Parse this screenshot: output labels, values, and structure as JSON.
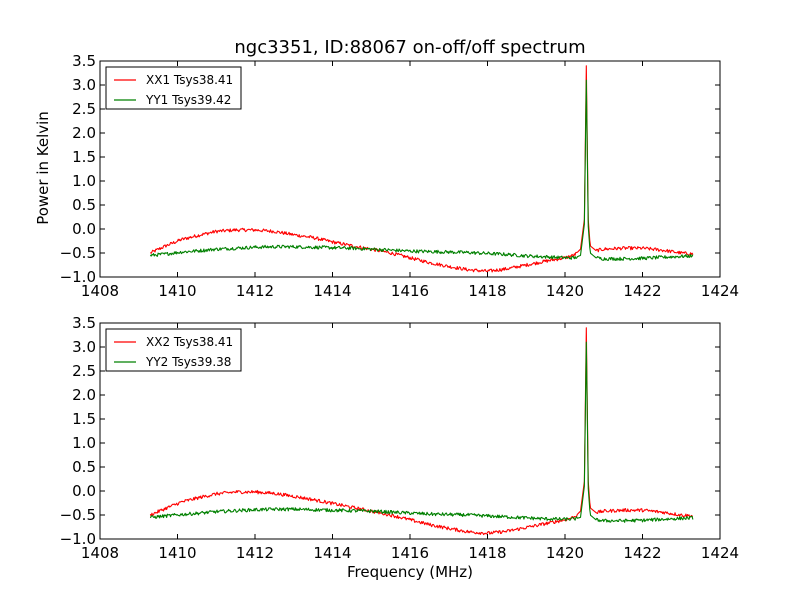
{
  "chart_data": [
    {
      "type": "line",
      "title": "ngc3351, ID:88067 on-off/off spectrum",
      "xlabel": "",
      "ylabel": "Power in Kelvin",
      "xlim": [
        1408,
        1424
      ],
      "ylim": [
        -1.0,
        3.5
      ],
      "xticks": [
        1408,
        1410,
        1412,
        1414,
        1416,
        1418,
        1420,
        1422,
        1424
      ],
      "yticks": [
        -1.0,
        -0.5,
        0.0,
        0.5,
        1.0,
        1.5,
        2.0,
        2.5,
        3.0,
        3.5
      ],
      "xtick_labels": [
        "1408",
        "1410",
        "1412",
        "1414",
        "1416",
        "1418",
        "1420",
        "1422",
        "1424"
      ],
      "ytick_labels": [
        "−1.0",
        "−0.5",
        "0.0",
        "0.5",
        "1.0",
        "1.5",
        "2.0",
        "2.5",
        "3.0",
        "3.5"
      ],
      "grid": false,
      "legend_position": "top-left",
      "series": [
        {
          "name": "XX1 Tsys38.41",
          "color": "#ff0000",
          "x": [
            1409.3,
            1409.7,
            1410.1,
            1410.6,
            1411.0,
            1411.5,
            1412.0,
            1412.5,
            1413.0,
            1413.5,
            1414.0,
            1414.5,
            1415.0,
            1415.5,
            1416.0,
            1416.5,
            1417.0,
            1417.5,
            1418.0,
            1418.5,
            1419.0,
            1419.5,
            1420.0,
            1420.25,
            1420.4,
            1420.5,
            1420.55,
            1420.6,
            1420.65,
            1420.8,
            1421.0,
            1421.5,
            1422.0,
            1422.5,
            1423.0,
            1423.3
          ],
          "y": [
            -0.5,
            -0.35,
            -0.22,
            -0.12,
            -0.05,
            -0.02,
            -0.02,
            -0.05,
            -0.12,
            -0.18,
            -0.27,
            -0.35,
            -0.42,
            -0.5,
            -0.6,
            -0.7,
            -0.78,
            -0.85,
            -0.88,
            -0.83,
            -0.75,
            -0.67,
            -0.6,
            -0.54,
            -0.42,
            0.2,
            3.4,
            0.2,
            -0.35,
            -0.45,
            -0.42,
            -0.4,
            -0.4,
            -0.44,
            -0.5,
            -0.52
          ]
        },
        {
          "name": "YY1 Tsys39.42",
          "color": "#008000",
          "x": [
            1409.3,
            1409.7,
            1410.1,
            1410.6,
            1411.0,
            1411.5,
            1412.0,
            1412.5,
            1413.0,
            1413.5,
            1414.0,
            1414.5,
            1415.0,
            1415.5,
            1416.0,
            1416.5,
            1417.0,
            1417.5,
            1418.0,
            1418.5,
            1419.0,
            1419.5,
            1420.0,
            1420.25,
            1420.4,
            1420.5,
            1420.55,
            1420.6,
            1420.65,
            1420.8,
            1421.0,
            1421.5,
            1422.0,
            1422.5,
            1423.0,
            1423.3
          ],
          "y": [
            -0.55,
            -0.52,
            -0.48,
            -0.45,
            -0.42,
            -0.4,
            -0.38,
            -0.37,
            -0.37,
            -0.38,
            -0.39,
            -0.4,
            -0.42,
            -0.44,
            -0.46,
            -0.47,
            -0.48,
            -0.49,
            -0.51,
            -0.53,
            -0.56,
            -0.58,
            -0.6,
            -0.6,
            -0.55,
            0.1,
            3.1,
            0.05,
            -0.5,
            -0.6,
            -0.62,
            -0.62,
            -0.61,
            -0.59,
            -0.57,
            -0.56
          ]
        }
      ]
    },
    {
      "type": "line",
      "title": "",
      "xlabel": "Frequency (MHz)",
      "ylabel": "",
      "xlim": [
        1408,
        1424
      ],
      "ylim": [
        -1.0,
        3.5
      ],
      "xticks": [
        1408,
        1410,
        1412,
        1414,
        1416,
        1418,
        1420,
        1422,
        1424
      ],
      "yticks": [
        -1.0,
        -0.5,
        0.0,
        0.5,
        1.0,
        1.5,
        2.0,
        2.5,
        3.0,
        3.5
      ],
      "xtick_labels": [
        "1408",
        "1410",
        "1412",
        "1414",
        "1416",
        "1418",
        "1420",
        "1422",
        "1424"
      ],
      "ytick_labels": [
        "−1.0",
        "−0.5",
        "0.0",
        "0.5",
        "1.0",
        "1.5",
        "2.0",
        "2.5",
        "3.0",
        "3.5"
      ],
      "grid": false,
      "legend_position": "top-left",
      "series": [
        {
          "name": "XX2 Tsys38.41",
          "color": "#ff0000",
          "x": [
            1409.3,
            1409.7,
            1410.1,
            1410.6,
            1411.0,
            1411.5,
            1412.0,
            1412.5,
            1413.0,
            1413.5,
            1414.0,
            1414.5,
            1415.0,
            1415.5,
            1416.0,
            1416.5,
            1417.0,
            1417.5,
            1418.0,
            1418.5,
            1419.0,
            1419.5,
            1420.0,
            1420.25,
            1420.4,
            1420.5,
            1420.55,
            1420.6,
            1420.65,
            1420.8,
            1421.0,
            1421.5,
            1422.0,
            1422.5,
            1423.0,
            1423.3
          ],
          "y": [
            -0.5,
            -0.36,
            -0.23,
            -0.13,
            -0.06,
            -0.02,
            -0.02,
            -0.05,
            -0.11,
            -0.18,
            -0.26,
            -0.34,
            -0.42,
            -0.5,
            -0.6,
            -0.7,
            -0.78,
            -0.85,
            -0.88,
            -0.84,
            -0.76,
            -0.68,
            -0.6,
            -0.54,
            -0.42,
            0.2,
            3.4,
            0.2,
            -0.35,
            -0.45,
            -0.42,
            -0.4,
            -0.4,
            -0.44,
            -0.5,
            -0.52
          ]
        },
        {
          "name": "YY2 Tsys39.38",
          "color": "#008000",
          "x": [
            1409.3,
            1409.7,
            1410.1,
            1410.6,
            1411.0,
            1411.5,
            1412.0,
            1412.5,
            1413.0,
            1413.5,
            1414.0,
            1414.5,
            1415.0,
            1415.5,
            1416.0,
            1416.5,
            1417.0,
            1417.5,
            1418.0,
            1418.5,
            1419.0,
            1419.5,
            1420.0,
            1420.25,
            1420.4,
            1420.5,
            1420.55,
            1420.6,
            1420.65,
            1420.8,
            1421.0,
            1421.5,
            1422.0,
            1422.5,
            1423.0,
            1423.3
          ],
          "y": [
            -0.55,
            -0.52,
            -0.49,
            -0.46,
            -0.43,
            -0.41,
            -0.39,
            -0.38,
            -0.38,
            -0.39,
            -0.4,
            -0.41,
            -0.42,
            -0.44,
            -0.46,
            -0.48,
            -0.49,
            -0.5,
            -0.52,
            -0.54,
            -0.56,
            -0.58,
            -0.59,
            -0.58,
            -0.55,
            0.1,
            3.1,
            0.05,
            -0.5,
            -0.6,
            -0.62,
            -0.62,
            -0.61,
            -0.59,
            -0.57,
            -0.56
          ]
        }
      ]
    }
  ]
}
